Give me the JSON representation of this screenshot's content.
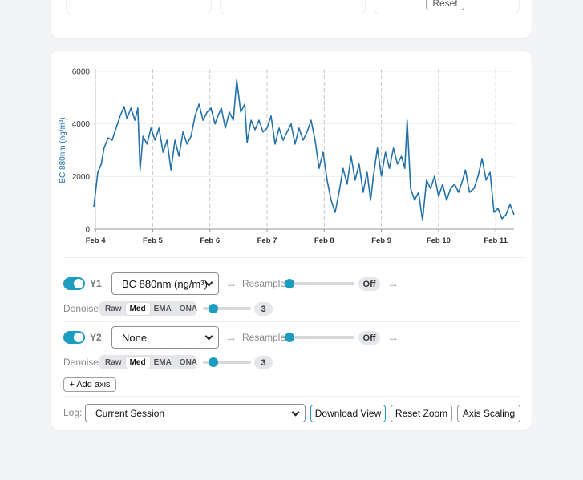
{
  "top_card": {
    "button": "Reset"
  },
  "chart_data": {
    "type": "line",
    "y_label": "BC 880nm (ng/m³)",
    "x": [
      3.97,
      4.0,
      4.04,
      4.1,
      4.15,
      4.22,
      4.29,
      4.36,
      4.43,
      4.5,
      4.55,
      4.62,
      4.69,
      4.74,
      4.78,
      4.83,
      4.9,
      4.97,
      5.04,
      5.11,
      5.18,
      5.25,
      5.32,
      5.39,
      5.46,
      5.53,
      5.6,
      5.67,
      5.74,
      5.81,
      5.88,
      5.95,
      6.02,
      6.09,
      6.14,
      6.2,
      6.27,
      6.34,
      6.41,
      6.47,
      6.54,
      6.61,
      6.65,
      6.72,
      6.79,
      6.86,
      6.93,
      7.0,
      7.07,
      7.14,
      7.21,
      7.28,
      7.35,
      7.42,
      7.49,
      7.56,
      7.63,
      7.7,
      7.77,
      7.84,
      7.91,
      7.98,
      8.05,
      8.12,
      8.19,
      8.26,
      8.33,
      8.4,
      8.47,
      8.54,
      8.61,
      8.68,
      8.75,
      8.81,
      8.86,
      8.93,
      9.0,
      9.07,
      9.14,
      9.21,
      9.28,
      9.35,
      9.41,
      9.45,
      9.51,
      9.58,
      9.65,
      9.72,
      9.79,
      9.86,
      9.93,
      10.0,
      10.07,
      10.14,
      10.21,
      10.28,
      10.35,
      10.42,
      10.47,
      10.54,
      10.62,
      10.69,
      10.76,
      10.83,
      10.9,
      10.97,
      11.04,
      11.11,
      11.18,
      11.25,
      11.32
    ],
    "series": [
      {
        "color": "#2271a8",
        "values": [
          850,
          1400,
          2160,
          2470,
          3080,
          3470,
          3380,
          3840,
          4300,
          4660,
          4200,
          4600,
          4140,
          4600,
          2250,
          3530,
          3230,
          3840,
          3380,
          3840,
          2920,
          3380,
          2250,
          3380,
          2770,
          3690,
          3230,
          3530,
          4300,
          4750,
          4140,
          4450,
          4600,
          4000,
          4300,
          4600,
          3840,
          4450,
          4140,
          5670,
          4450,
          4750,
          3290,
          4140,
          3780,
          4140,
          3690,
          3840,
          4300,
          3230,
          3840,
          3380,
          3690,
          4000,
          3230,
          3840,
          3380,
          3690,
          4140,
          3380,
          2310,
          2920,
          1860,
          1100,
          640,
          1400,
          2310,
          1710,
          2770,
          1860,
          2470,
          1400,
          2160,
          1100,
          2010,
          3080,
          2010,
          2920,
          2310,
          3080,
          2470,
          2770,
          2310,
          4140,
          1550,
          1100,
          1400,
          340,
          1860,
          1550,
          2010,
          1250,
          1710,
          1100,
          1550,
          1710,
          1400,
          1860,
          2250,
          1400,
          1550,
          2010,
          2680,
          1860,
          2160,
          640,
          790,
          400,
          550,
          940,
          550
        ]
      }
    ],
    "xlim": [
      3.97,
      11.32
    ],
    "xticks": [
      {
        "value": 4,
        "label": "Feb 4"
      },
      {
        "value": 5,
        "label": "Feb 5"
      },
      {
        "value": 6,
        "label": "Feb 6"
      },
      {
        "value": 7,
        "label": "Feb 7"
      },
      {
        "value": 8,
        "label": "Feb 8"
      },
      {
        "value": 9,
        "label": "Feb 9"
      },
      {
        "value": 10,
        "label": "Feb 10"
      },
      {
        "value": 11,
        "label": "Feb 11"
      }
    ],
    "ylim": [
      0,
      6000
    ],
    "yticks": [
      0,
      2000,
      4000,
      6000
    ],
    "grid": true
  },
  "controls": {
    "axes": [
      {
        "label": "Y1",
        "enabled": true,
        "select": "BC 880nm (ng/m³)",
        "resample_label": "Resample",
        "resample_value": "Off",
        "denoise_label": "Denoise",
        "denoise_options": [
          "Raw",
          "Med",
          "EMA",
          "ONA"
        ],
        "denoise_selected": 1,
        "denoise_strength": 3
      },
      {
        "label": "Y2",
        "enabled": true,
        "select": "None",
        "resample_label": "Resample",
        "resample_value": "Off",
        "denoise_label": "Denoise",
        "denoise_options": [
          "Raw",
          "Med",
          "EMA",
          "ONA"
        ],
        "denoise_selected": 1,
        "denoise_strength": 3
      }
    ],
    "add_axis": "+ Add axis",
    "log_label": "Log:",
    "log_select": "Current Session",
    "buttons": [
      "Download View",
      "Reset Zoom",
      "Axis Scaling"
    ]
  }
}
